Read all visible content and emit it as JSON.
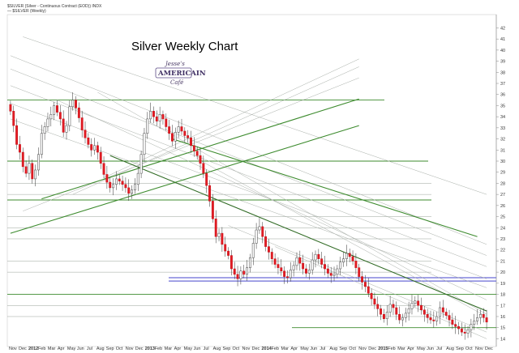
{
  "header": {
    "symbol_line": "$SILVER (Silver - Continuous Contract (EOD)) INDX",
    "legend_line": "— $SILVER (Weekly)"
  },
  "chart_data": {
    "type": "candlestick",
    "title": "Silver Weekly Chart",
    "logo": {
      "line1": "Jesse's",
      "line2": "AMERICAIN",
      "line3": "Café"
    },
    "price_axis": {
      "side": "right",
      "ylim": [
        13.3,
        43.2
      ],
      "ticks": [
        14,
        15,
        16,
        17,
        18,
        19,
        20,
        21,
        22,
        23,
        24,
        25,
        26,
        27,
        28,
        29,
        30,
        31,
        32,
        33,
        34,
        35,
        36,
        37,
        38,
        39,
        40,
        41,
        42
      ]
    },
    "x_axis": {
      "labels": [
        "Nov",
        "Dec",
        "2012",
        "Feb",
        "Mar",
        "Apr",
        "May",
        "Jun",
        "Jul",
        "Aug",
        "Sep",
        "Oct",
        "Nov",
        "Dec",
        "2013",
        "Feb",
        "Mar",
        "Apr",
        "May",
        "Jun",
        "Jul",
        "Aug",
        "Sep",
        "Oct",
        "Nov",
        "Dec",
        "2014",
        "Feb",
        "Mar",
        "Apr",
        "May",
        "Jun",
        "Jul",
        "Aug",
        "Sep",
        "Oct",
        "Nov",
        "Dec",
        "2015",
        "Feb",
        "Mar",
        "Apr",
        "May",
        "Jun",
        "Jul",
        "Aug",
        "Sep",
        "Oct",
        "Nov",
        "Dec"
      ],
      "bold_labels": [
        "2012",
        "2013",
        "2014",
        "2015"
      ]
    },
    "weekly_closes": [
      34.5,
      33.2,
      31.5,
      30.8,
      29.5,
      28.9,
      29.8,
      28.4,
      29.2,
      30.6,
      32.5,
      33.1,
      33.8,
      34.2,
      35.0,
      34.4,
      33.8,
      32.6,
      33.2,
      34.9,
      35.5,
      34.8,
      33.9,
      32.8,
      32.1,
      31.5,
      31.0,
      31.4,
      30.8,
      29.8,
      28.8,
      28.1,
      27.6,
      27.9,
      28.4,
      28.2,
      27.9,
      27.6,
      27.1,
      27.4,
      27.9,
      28.9,
      30.6,
      32.5,
      33.8,
      34.5,
      34.0,
      33.6,
      34.2,
      33.8,
      33.1,
      32.5,
      31.8,
      32.6,
      33.1,
      32.7,
      32.3,
      32.1,
      31.4,
      30.9,
      30.5,
      29.8,
      28.9,
      27.8,
      26.4,
      24.8,
      23.2,
      23.5,
      22.5,
      21.9,
      21.5,
      20.3,
      19.8,
      19.4,
      20.1,
      19.8,
      20.4,
      21.3,
      22.6,
      23.8,
      24.1,
      23.2,
      22.3,
      21.8,
      21.2,
      20.7,
      20.4,
      20.1,
      19.6,
      19.5,
      20.2,
      20.6,
      21.3,
      20.8,
      20.3,
      19.9,
      20.2,
      21.1,
      21.6,
      21.2,
      20.7,
      20.3,
      19.9,
      19.7,
      19.8,
      20.3,
      20.9,
      21.2,
      21.7,
      21.4,
      21.0,
      20.4,
      19.6,
      19.1,
      18.7,
      18.1,
      17.6,
      17.1,
      16.7,
      16.2,
      15.8,
      16.4,
      17.1,
      16.8,
      16.2,
      15.7,
      15.9,
      16.3,
      16.7,
      17.2,
      17.4,
      17.0,
      16.6,
      16.2,
      15.9,
      15.7,
      15.6,
      16.0,
      16.8,
      16.4,
      16.1,
      15.7,
      15.3,
      15.1,
      14.9,
      14.6,
      14.5,
      14.8,
      15.3,
      15.6,
      15.9,
      16.2,
      15.9,
      15.5
    ],
    "horizontal_levels": [
      {
        "price": 35.5,
        "color": "#3d8b2e",
        "weight": "heavy"
      },
      {
        "price": 30.0,
        "color": "#3d8b2e",
        "weight": "heavy"
      },
      {
        "price": 26.5,
        "color": "#3d8b2e",
        "weight": "heavy"
      },
      {
        "price": 19.5,
        "color": "#6b6bd6",
        "weight": "heavy"
      },
      {
        "price": 19.2,
        "color": "#6b6bd6",
        "weight": "heavy"
      },
      {
        "price": 18.0,
        "color": "#3d8b2e",
        "weight": "heavy"
      },
      {
        "price": 15.0,
        "color": "#3d8b2e",
        "weight": "heavy"
      }
    ],
    "trendlines_primary": [
      {
        "color": "#2f6a23",
        "from_week": 32,
        "from_price": 30.5,
        "to_week": 154,
        "to_price": 16.5
      },
      {
        "color": "#3d8b2e",
        "from_week": 0,
        "from_price": 23.5,
        "to_week": 112,
        "to_price": 33.2
      },
      {
        "color": "#3d8b2e",
        "from_week": 10,
        "from_price": 26.6,
        "to_week": 112,
        "to_price": 35.6
      },
      {
        "color": "#3d8b2e",
        "from_week": 52,
        "from_price": 32.0,
        "to_week": 150,
        "to_price": 23.2
      }
    ],
    "trendlines_secondary": [
      {
        "from_week": 4,
        "from_price": 41.2,
        "to_week": 157,
        "to_price": 27.0
      },
      {
        "from_week": 0,
        "from_price": 39.5,
        "to_week": 157,
        "to_price": 22.5
      },
      {
        "from_week": 0,
        "from_price": 38.3,
        "to_week": 157,
        "to_price": 21.5
      },
      {
        "from_week": 0,
        "from_price": 36.8,
        "to_week": 157,
        "to_price": 20.5
      },
      {
        "from_week": 0,
        "from_price": 35.2,
        "to_week": 157,
        "to_price": 19.4
      },
      {
        "from_week": 0,
        "from_price": 33.8,
        "to_week": 157,
        "to_price": 18.6
      },
      {
        "from_week": 15,
        "from_price": 35.5,
        "to_week": 157,
        "to_price": 17.5
      },
      {
        "from_week": 28,
        "from_price": 36.2,
        "to_week": 157,
        "to_price": 16.2
      },
      {
        "from_week": 60,
        "from_price": 30.2,
        "to_week": 157,
        "to_price": 16.0
      },
      {
        "from_week": 4,
        "from_price": 25.5,
        "to_week": 112,
        "to_price": 37.5
      },
      {
        "from_week": 20,
        "from_price": 27.0,
        "to_week": 112,
        "to_price": 38.5
      },
      {
        "from_week": 30,
        "from_price": 28.5,
        "to_week": 112,
        "to_price": 39.2
      },
      {
        "from_week": 70,
        "from_price": 24.2,
        "to_week": 157,
        "to_price": 14.6
      },
      {
        "from_week": 85,
        "from_price": 22.3,
        "to_week": 157,
        "to_price": 14.0
      }
    ],
    "thin_levels": [
      28.0,
      27.0,
      25.0,
      24.0,
      23.0,
      21.0,
      20.0,
      17.0,
      16.0
    ]
  }
}
